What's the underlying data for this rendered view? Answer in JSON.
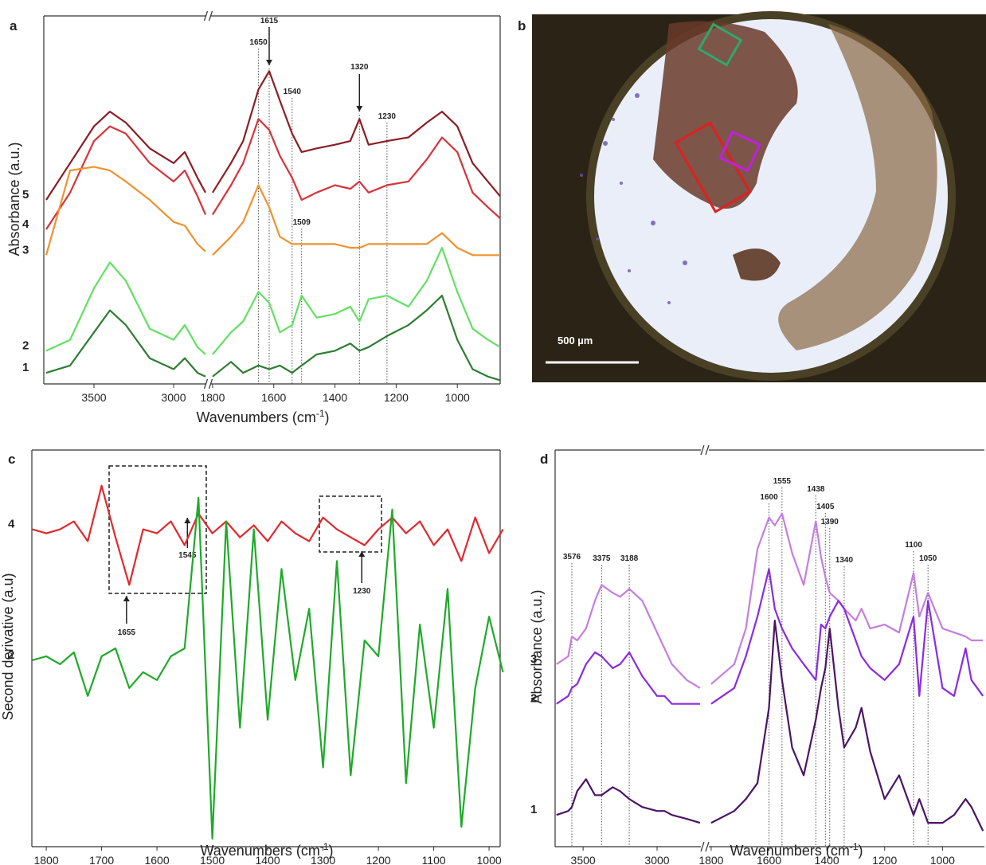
{
  "chart_data": [
    {
      "type": "line",
      "panel_label": "a",
      "y_label": "Absorbance (a.u.)",
      "x_label": "Wavenumbers (cm",
      "x_label_sup": "-1",
      "x_label_close": ")",
      "ylim": [
        0,
        100
      ],
      "segments": [
        {
          "xlim": [
            3815,
            2800
          ],
          "xticks": [
            3500,
            3000
          ],
          "x": [
            3800,
            3650,
            3500,
            3400,
            3300,
            3150,
            3000,
            2930,
            2850,
            2800
          ]
        },
        {
          "xlim": [
            1805,
            860
          ],
          "xticks": [
            1800,
            1600,
            1400,
            1200,
            1000
          ],
          "x": [
            1800,
            1740,
            1700,
            1650,
            1615,
            1580,
            1540,
            1509,
            1460,
            1400,
            1350,
            1320,
            1290,
            1230,
            1160,
            1100,
            1050,
            1000,
            950,
            900,
            860
          ]
        }
      ],
      "series": [
        {
          "name": "5",
          "color": "#8b1e24",
          "values": [
            [
              50,
              60,
              70,
              74,
              71,
              64,
              60,
              63,
              56,
              52
            ],
            [
              52,
              60,
              66,
              80,
              85,
              77,
              68,
              63,
              64,
              65,
              66,
              72,
              65,
              66,
              67,
              71,
              74,
              70,
              60,
              55,
              51
            ]
          ]
        },
        {
          "name": "4",
          "color": "#d8333a",
          "values": [
            [
              42,
              52,
              66,
              70,
              68,
              60,
              55,
              58,
              51,
              46
            ],
            [
              46,
              54,
              60,
              72,
              69,
              62,
              56,
              50,
              52,
              54,
              53,
              55,
              52,
              54,
              55,
              61,
              67,
              63,
              52,
              48,
              45
            ]
          ]
        },
        {
          "name": "3",
          "color": "#ef922e",
          "values": [
            [
              35,
              58,
              59,
              58,
              55,
              50,
              44,
              43,
              38,
              36
            ],
            [
              35,
              40,
              44,
              54,
              48,
              40,
              38,
              38,
              38,
              38,
              37,
              37,
              38,
              38,
              38,
              38,
              41,
              37,
              35,
              35,
              35
            ]
          ]
        },
        {
          "name": "2",
          "color": "#62e062",
          "values": [
            [
              9,
              12,
              26,
              33,
              28,
              15,
              12,
              16,
              10,
              8
            ],
            [
              8,
              14,
              17,
              25,
              22,
              14,
              16,
              24,
              18,
              19,
              21,
              17,
              23,
              24,
              21,
              28,
              37,
              25,
              15,
              12,
              10
            ]
          ]
        },
        {
          "name": "1",
          "color": "#2e7d32",
          "values": [
            [
              3,
              5,
              14,
              20,
              16,
              7,
              4,
              7,
              3,
              2
            ],
            [
              2,
              6,
              3,
              5,
              4,
              5,
              3,
              5,
              8,
              9,
              11,
              9,
              10,
              13,
              16,
              20,
              24,
              12,
              4,
              2,
              1
            ]
          ]
        }
      ],
      "annotations": [
        1650,
        1615,
        1540,
        1320,
        1230,
        1509
      ]
    },
    {
      "type": "line",
      "panel_label": "c",
      "y_label": "Second derivative (a.u)",
      "x_label": "Wavenumbers (cm",
      "x_label_sup": "-1",
      "x_label_close": ")",
      "ylim": [
        0,
        100
      ],
      "segments": [
        {
          "xlim": [
            1826,
            980
          ],
          "xticks": [
            1800,
            1700,
            1600,
            1500,
            1400,
            1300,
            1200,
            1100,
            1000
          ],
          "x": [
            1825,
            1800,
            1775,
            1750,
            1725,
            1700,
            1675,
            1650,
            1625,
            1600,
            1575,
            1550,
            1525,
            1500,
            1475,
            1450,
            1425,
            1400,
            1375,
            1350,
            1325,
            1300,
            1275,
            1250,
            1225,
            1200,
            1175,
            1150,
            1125,
            1100,
            1075,
            1050,
            1025,
            1000,
            975
          ]
        }
      ],
      "series": [
        {
          "name": "4",
          "color": "#e0282e",
          "values": [
            [
              80,
              79,
              80,
              82,
              77,
              91,
              78,
              66,
              80,
              79,
              82,
              76,
              84,
              79,
              82,
              78,
              81,
              77,
              82,
              79,
              77,
              83,
              80,
              78,
              76,
              80,
              83,
              79,
              82,
              76,
              80,
              72,
              83,
              74,
              80
            ]
          ]
        },
        {
          "name": "2",
          "color": "#1faa2a",
          "values": [
            [
              47,
              48,
              46,
              49,
              38,
              48,
              50,
              40,
              44,
              42,
              48,
              50,
              88,
              2,
              82,
              30,
              80,
              32,
              70,
              42,
              60,
              20,
              72,
              18,
              52,
              48,
              85,
              16,
              56,
              30,
              65,
              5,
              40,
              58,
              44
            ]
          ]
        }
      ],
      "annotations": [
        1655,
        1545,
        1230
      ]
    },
    {
      "type": "line",
      "panel_label": "d",
      "y_label": "Absorbance (a.u.)",
      "x_label": "Wavenumbers (cm",
      "x_label_sup": "-1",
      "x_label_close": ")",
      "ylim": [
        0,
        100
      ],
      "segments": [
        {
          "xlim": [
            3689,
            2704
          ],
          "xticks": [
            3500,
            3000
          ],
          "x": [
            3680,
            3600,
            3576,
            3540,
            3480,
            3420,
            3375,
            3300,
            3250,
            3188,
            3100,
            3000,
            2950,
            2900,
            2800,
            2710
          ]
        },
        {
          "xlim": [
            1808,
            855
          ],
          "xticks": [
            1800,
            1600,
            1400,
            1200,
            1000
          ],
          "x": [
            1800,
            1720,
            1680,
            1640,
            1600,
            1580,
            1555,
            1520,
            1480,
            1438,
            1420,
            1405,
            1390,
            1360,
            1340,
            1300,
            1280,
            1250,
            1200,
            1150,
            1100,
            1080,
            1050,
            1000,
            960,
            920,
            900,
            860
          ]
        }
      ],
      "series": [
        {
          "name": "3",
          "color": "#c47ee0",
          "values": [
            [
              46,
              48,
              53,
              52,
              55,
              62,
              66,
              64,
              63,
              65,
              62,
              54,
              50,
              46,
              42,
              40
            ],
            [
              41,
              46,
              55,
              75,
              83,
              81,
              84,
              74,
              66,
              82,
              73,
              68,
              64,
              62,
              60,
              57,
              60,
              55,
              56,
              54,
              69,
              58,
              64,
              55,
              54,
              53,
              52,
              52
            ]
          ]
        },
        {
          "name": "2",
          "color": "#8a2be2",
          "values": [
            [
              36,
              38,
              40,
              41,
              46,
              49,
              48,
              45,
              46,
              49,
              43,
              38,
              38,
              36,
              36,
              36
            ],
            [
              36,
              40,
              48,
              58,
              70,
              60,
              55,
              50,
              46,
              42,
              56,
              55,
              58,
              62,
              60,
              52,
              48,
              45,
              42,
              46,
              58,
              38,
              62,
              40,
              38,
              50,
              42,
              38
            ]
          ]
        },
        {
          "name": "1",
          "color": "#4b1466",
          "values": [
            [
              8,
              9,
              10,
              14,
              17,
              13,
              13,
              15,
              14,
              12,
              10,
              9,
              9,
              8,
              7,
              6
            ],
            [
              6,
              9,
              12,
              16,
              35,
              57,
              42,
              25,
              18,
              32,
              40,
              45,
              55,
              35,
              25,
              30,
              35,
              24,
              12,
              18,
              8,
              12,
              6,
              6,
              8,
              12,
              10,
              4
            ]
          ]
        }
      ],
      "annotations": [
        3576,
        3375,
        3188,
        1600,
        1555,
        1438,
        1405,
        1390,
        1340,
        1100,
        1050
      ]
    }
  ],
  "image_panel": {
    "panel_label": "b",
    "scale_bar_label": "500 µm"
  }
}
